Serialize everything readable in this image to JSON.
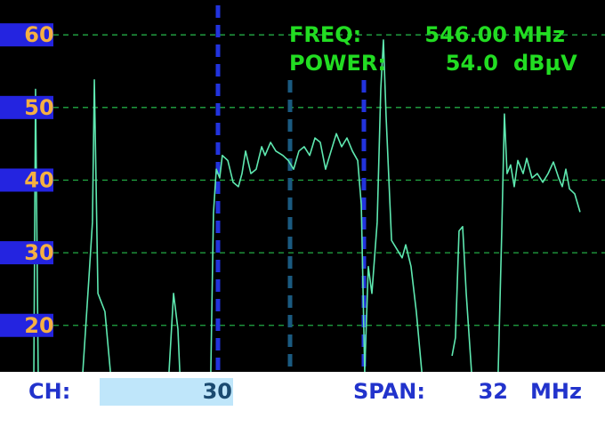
{
  "chart_data": {
    "type": "line",
    "color": "#5ee8b0",
    "grid": true,
    "xlim": [
      530,
      562
    ],
    "ylim": [
      13.6,
      64.8
    ],
    "yticks": [
      20,
      30,
      40,
      50,
      60
    ],
    "x": [
      531.79,
      531.88,
      532.02,
      null,
      534.38,
      534.71,
      534.89,
      534.99,
      535.18,
      535.55,
      535.84,
      null,
      538.94,
      539.18,
      539.41,
      539.51,
      null,
      541.15,
      541.29,
      541.44,
      541.62,
      541.76,
      542.05,
      542.33,
      542.61,
      542.8,
      542.99,
      543.27,
      543.55,
      543.84,
      544.02,
      544.31,
      544.59,
      544.96,
      545.25,
      545.53,
      545.81,
      546.09,
      546.38,
      546.66,
      546.94,
      547.22,
      547.51,
      547.79,
      548.07,
      548.35,
      548.64,
      548.92,
      549.11,
      549.29,
      549.48,
      549.67,
      549.95,
      550.14,
      550.28,
      550.42,
      550.71,
      550.99,
      551.27,
      551.46,
      551.74,
      552.02,
      552.31,
      null,
      553.91,
      554.09,
      554.28,
      554.47,
      554.66,
      554.94,
      null,
      556.35,
      556.54,
      556.68,
      556.82,
      557.01,
      557.2,
      557.39,
      557.67,
      557.86,
      558.14,
      558.42,
      558.71,
      558.99,
      559.27,
      559.55,
      559.74,
      559.93,
      560.12,
      560.4,
      560.68
    ],
    "values": [
      13.6,
      52.5,
      13.6,
      null,
      13.6,
      26.8,
      34.2,
      53.8,
      24.4,
      21.9,
      13.6,
      null,
      13.6,
      24.4,
      19.5,
      13.6,
      null,
      13.6,
      35.4,
      41.5,
      40.3,
      43.4,
      42.7,
      39.7,
      39.1,
      40.9,
      44.0,
      40.9,
      41.5,
      44.6,
      43.4,
      45.2,
      44.0,
      43.4,
      42.7,
      41.5,
      44.0,
      44.6,
      43.4,
      45.8,
      45.2,
      41.5,
      44.0,
      46.4,
      44.6,
      45.8,
      44.0,
      42.7,
      36.6,
      13.6,
      28.1,
      24.4,
      34.2,
      52.5,
      59.3,
      48.9,
      31.7,
      30.5,
      29.3,
      31.1,
      28.1,
      21.9,
      13.6,
      null,
      15.8,
      18.3,
      33.0,
      33.6,
      24.4,
      13.6,
      null,
      13.6,
      33.0,
      49.1,
      40.9,
      42.1,
      39.1,
      42.7,
      40.9,
      43.0,
      40.3,
      40.9,
      39.7,
      40.9,
      42.5,
      40.3,
      39.1,
      41.5,
      38.8,
      38.1,
      35.6
    ]
  },
  "readout": {
    "freq_label": "FREQ:",
    "freq_value": "546.00",
    "freq_unit": "MHz",
    "power_label": "POWER:",
    "power_value": "54.0",
    "power_unit": "dBµV"
  },
  "footer": {
    "ch_label": "CH:",
    "ch_value": "30",
    "span_label": "SPAN:",
    "span_value": "32",
    "span_unit": "MHz"
  }
}
